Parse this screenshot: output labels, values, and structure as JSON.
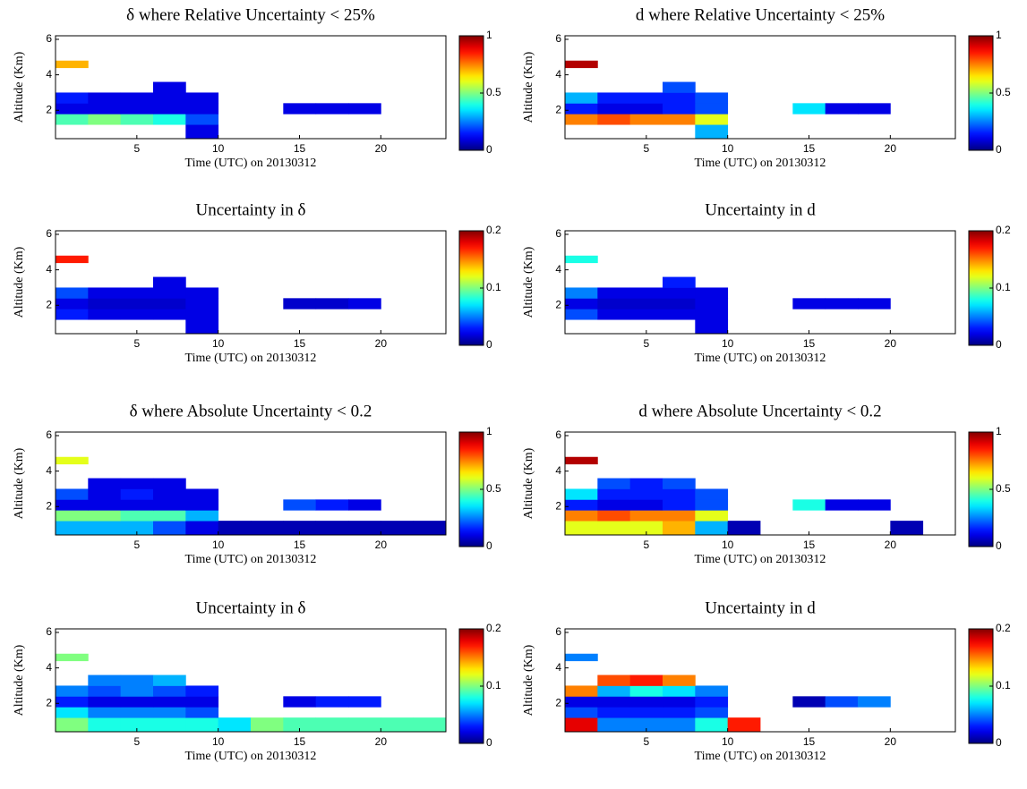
{
  "chart_data": [
    {
      "type": "heatmap",
      "title": "δ where Relative Uncertainty < 25%",
      "xlabel": "Time (UTC) on 20130312",
      "ylabel": "Altitude (Km)",
      "colormap": "jet",
      "xlim": [
        0,
        24
      ],
      "ylim": [
        0.4,
        6.2
      ],
      "xticks": [
        5,
        10,
        15,
        20
      ],
      "yticks": [
        2,
        4,
        6
      ],
      "clim": [
        0,
        1
      ],
      "cticks": [
        0,
        0.5,
        1
      ],
      "xbins": [
        0,
        2,
        4,
        6,
        8,
        10,
        12,
        14,
        16,
        18,
        20,
        22,
        24
      ],
      "ybins": [
        0.4,
        1.2,
        1.8,
        2.4,
        3.0,
        3.6,
        4.4,
        4.8
      ],
      "z": [
        [
          null,
          null,
          null,
          null,
          0.1,
          null,
          null,
          null,
          null,
          null,
          null,
          null
        ],
        [
          0.45,
          0.5,
          0.45,
          0.4,
          0.2,
          null,
          null,
          null,
          null,
          null,
          null,
          null
        ],
        [
          0.1,
          0.1,
          0.1,
          0.1,
          0.1,
          null,
          null,
          0.1,
          0.1,
          0.1,
          null,
          null
        ],
        [
          0.15,
          0.1,
          0.1,
          0.1,
          0.1,
          null,
          null,
          null,
          null,
          null,
          null,
          null
        ],
        [
          null,
          null,
          null,
          0.1,
          null,
          null,
          null,
          null,
          null,
          null,
          null,
          null
        ],
        [
          null,
          null,
          null,
          null,
          null,
          null,
          null,
          null,
          null,
          null,
          null,
          null
        ],
        [
          0.7,
          null,
          null,
          null,
          null,
          null,
          null,
          null,
          null,
          null,
          null,
          null
        ]
      ]
    },
    {
      "type": "heatmap",
      "title": "d where Relative Uncertainty < 25%",
      "xlabel": "Time (UTC) on 20130312",
      "ylabel": "Altitude (Km)",
      "colormap": "jet",
      "xlim": [
        0,
        24
      ],
      "ylim": [
        0.4,
        6.2
      ],
      "xticks": [
        5,
        10,
        15,
        20
      ],
      "yticks": [
        2,
        4,
        6
      ],
      "clim": [
        0,
        1
      ],
      "cticks": [
        0,
        0.5,
        1
      ],
      "xbins": [
        0,
        2,
        4,
        6,
        8,
        10,
        12,
        14,
        16,
        18,
        20,
        22,
        24
      ],
      "ybins": [
        0.4,
        1.2,
        1.8,
        2.4,
        3.0,
        3.6,
        4.4,
        4.8
      ],
      "z": [
        [
          null,
          null,
          null,
          null,
          0.3,
          null,
          null,
          null,
          null,
          null,
          null,
          null
        ],
        [
          0.75,
          0.8,
          0.75,
          0.75,
          0.6,
          null,
          null,
          null,
          null,
          null,
          null,
          null
        ],
        [
          0.15,
          0.1,
          0.1,
          0.15,
          0.2,
          null,
          null,
          0.35,
          0.1,
          0.1,
          null,
          null
        ],
        [
          0.3,
          0.15,
          0.15,
          0.15,
          0.2,
          null,
          null,
          null,
          null,
          null,
          null,
          null
        ],
        [
          null,
          null,
          null,
          0.2,
          null,
          null,
          null,
          null,
          null,
          null,
          null,
          null
        ],
        [
          null,
          null,
          null,
          null,
          null,
          null,
          null,
          null,
          null,
          null,
          null,
          null
        ],
        [
          0.95,
          null,
          null,
          null,
          null,
          null,
          null,
          null,
          null,
          null,
          null,
          null
        ]
      ]
    },
    {
      "type": "heatmap",
      "title": "Uncertainty in δ",
      "xlabel": "Time (UTC) on 20130312",
      "ylabel": "Altitude (Km)",
      "colormap": "jet",
      "xlim": [
        0,
        24
      ],
      "ylim": [
        0.4,
        6.2
      ],
      "xticks": [
        5,
        10,
        15,
        20
      ],
      "yticks": [
        2,
        4,
        6
      ],
      "clim": [
        0,
        0.2
      ],
      "cticks": [
        0,
        0.1,
        0.2
      ],
      "xbins": [
        0,
        2,
        4,
        6,
        8,
        10,
        12,
        14,
        16,
        18,
        20,
        22,
        24
      ],
      "ybins": [
        0.4,
        1.2,
        1.8,
        2.4,
        3.0,
        3.6,
        4.4,
        4.8
      ],
      "z": [
        [
          null,
          null,
          null,
          null,
          0.02,
          null,
          null,
          null,
          null,
          null,
          null,
          null
        ],
        [
          0.03,
          0.02,
          0.02,
          0.02,
          0.02,
          null,
          null,
          null,
          null,
          null,
          null,
          null
        ],
        [
          0.02,
          0.015,
          0.015,
          0.015,
          0.02,
          null,
          null,
          0.015,
          0.015,
          0.02,
          null,
          null
        ],
        [
          0.04,
          0.02,
          0.02,
          0.02,
          0.02,
          null,
          null,
          null,
          null,
          null,
          null,
          null
        ],
        [
          null,
          null,
          null,
          0.02,
          null,
          null,
          null,
          null,
          null,
          null,
          null,
          null
        ],
        [
          null,
          null,
          null,
          null,
          null,
          null,
          null,
          null,
          null,
          null,
          null,
          null
        ],
        [
          0.17,
          null,
          null,
          null,
          null,
          null,
          null,
          null,
          null,
          null,
          null,
          null
        ]
      ]
    },
    {
      "type": "heatmap",
      "title": "Uncertainty in d",
      "xlabel": "Time (UTC) on 20130312",
      "ylabel": "Altitude (Km)",
      "colormap": "jet",
      "xlim": [
        0,
        24
      ],
      "ylim": [
        0.4,
        6.2
      ],
      "xticks": [
        5,
        10,
        15,
        20
      ],
      "yticks": [
        2,
        4,
        6
      ],
      "clim": [
        0,
        0.2
      ],
      "cticks": [
        0,
        0.1,
        0.2
      ],
      "xbins": [
        0,
        2,
        4,
        6,
        8,
        10,
        12,
        14,
        16,
        18,
        20,
        22,
        24
      ],
      "ybins": [
        0.4,
        1.2,
        1.8,
        2.4,
        3.0,
        3.6,
        4.4,
        4.8
      ],
      "z": [
        [
          null,
          null,
          null,
          null,
          0.02,
          null,
          null,
          null,
          null,
          null,
          null,
          null
        ],
        [
          0.04,
          0.02,
          0.02,
          0.02,
          0.02,
          null,
          null,
          null,
          null,
          null,
          null,
          null
        ],
        [
          0.02,
          0.015,
          0.015,
          0.015,
          0.02,
          null,
          null,
          0.02,
          0.02,
          0.02,
          null,
          null
        ],
        [
          0.05,
          0.02,
          0.02,
          0.02,
          0.02,
          null,
          null,
          null,
          null,
          null,
          null,
          null
        ],
        [
          null,
          null,
          null,
          0.03,
          null,
          null,
          null,
          null,
          null,
          null,
          null,
          null
        ],
        [
          null,
          null,
          null,
          null,
          null,
          null,
          null,
          null,
          null,
          null,
          null,
          null
        ],
        [
          0.08,
          null,
          null,
          null,
          null,
          null,
          null,
          null,
          null,
          null,
          null,
          null
        ]
      ]
    },
    {
      "type": "heatmap",
      "title": "δ where Absolute Uncertainty < 0.2",
      "xlabel": "Time (UTC) on 20130312",
      "ylabel": "Altitude (Km)",
      "colormap": "jet",
      "xlim": [
        0,
        24
      ],
      "ylim": [
        0.4,
        6.2
      ],
      "xticks": [
        5,
        10,
        15,
        20
      ],
      "yticks": [
        2,
        4,
        6
      ],
      "clim": [
        0,
        1
      ],
      "cticks": [
        0,
        0.5,
        1
      ],
      "xbins": [
        0,
        2,
        4,
        6,
        8,
        10,
        12,
        14,
        16,
        18,
        20,
        22,
        24
      ],
      "ybins": [
        0.4,
        1.2,
        1.8,
        2.4,
        3.0,
        3.6,
        4.4,
        4.8
      ],
      "z": [
        [
          0.3,
          0.3,
          0.3,
          0.2,
          0.1,
          0.05,
          0.05,
          0.05,
          0.05,
          0.05,
          0.05,
          0.05
        ],
        [
          0.5,
          0.5,
          0.45,
          0.45,
          0.3,
          null,
          null,
          null,
          null,
          null,
          null,
          null
        ],
        [
          0.1,
          0.1,
          0.1,
          0.1,
          0.1,
          null,
          null,
          0.2,
          0.15,
          0.1,
          null,
          null
        ],
        [
          0.2,
          0.1,
          0.15,
          0.1,
          0.1,
          null,
          null,
          null,
          null,
          null,
          null,
          null
        ],
        [
          null,
          0.1,
          0.1,
          0.1,
          null,
          null,
          null,
          null,
          null,
          null,
          null,
          null
        ],
        [
          null,
          null,
          null,
          null,
          null,
          null,
          null,
          null,
          null,
          null,
          null,
          null
        ],
        [
          0.6,
          null,
          null,
          null,
          null,
          null,
          null,
          null,
          null,
          null,
          null,
          null
        ]
      ]
    },
    {
      "type": "heatmap",
      "title": "d where Absolute Uncertainty < 0.2",
      "xlabel": "Time (UTC) on 20130312",
      "ylabel": "Altitude (Km)",
      "colormap": "jet",
      "xlim": [
        0,
        24
      ],
      "ylim": [
        0.4,
        6.2
      ],
      "xticks": [
        5,
        10,
        15,
        20
      ],
      "yticks": [
        2,
        4,
        6
      ],
      "clim": [
        0,
        1
      ],
      "cticks": [
        0,
        0.5,
        1
      ],
      "xbins": [
        0,
        2,
        4,
        6,
        8,
        10,
        12,
        14,
        16,
        18,
        20,
        22,
        24
      ],
      "ybins": [
        0.4,
        1.2,
        1.8,
        2.4,
        3.0,
        3.6,
        4.4,
        4.8
      ],
      "z": [
        [
          0.6,
          0.6,
          0.6,
          0.7,
          0.3,
          0.05,
          null,
          null,
          null,
          null,
          0.05,
          null
        ],
        [
          0.75,
          0.8,
          0.75,
          0.75,
          0.6,
          null,
          null,
          null,
          null,
          null,
          null,
          null
        ],
        [
          0.15,
          0.1,
          0.1,
          0.15,
          0.2,
          null,
          null,
          0.4,
          0.1,
          0.1,
          null,
          null
        ],
        [
          0.35,
          0.15,
          0.15,
          0.15,
          0.2,
          null,
          null,
          null,
          null,
          null,
          null,
          null
        ],
        [
          null,
          0.2,
          0.15,
          0.2,
          null,
          null,
          null,
          null,
          null,
          null,
          null,
          null
        ],
        [
          null,
          null,
          null,
          null,
          null,
          null,
          null,
          null,
          null,
          null,
          null,
          null
        ],
        [
          0.95,
          null,
          null,
          null,
          null,
          null,
          null,
          null,
          null,
          null,
          null,
          null
        ]
      ]
    },
    {
      "type": "heatmap",
      "title": "Uncertainty in δ",
      "xlabel": "Time (UTC) on 20130312",
      "ylabel": "Altitude (Km)",
      "colormap": "jet",
      "xlim": [
        0,
        24
      ],
      "ylim": [
        0.4,
        6.2
      ],
      "xticks": [
        5,
        10,
        15,
        20
      ],
      "yticks": [
        2,
        4,
        6
      ],
      "clim": [
        0,
        0.2
      ],
      "cticks": [
        0,
        0.1,
        0.2
      ],
      "xbins": [
        0,
        2,
        4,
        6,
        8,
        10,
        12,
        14,
        16,
        18,
        20,
        22,
        24
      ],
      "ybins": [
        0.4,
        1.2,
        1.8,
        2.4,
        3.0,
        3.6,
        4.4,
        4.8
      ],
      "z": [
        [
          0.1,
          0.08,
          0.08,
          0.08,
          0.08,
          0.07,
          0.1,
          0.09,
          0.09,
          0.09,
          0.09,
          0.09
        ],
        [
          0.07,
          0.05,
          0.05,
          0.05,
          0.04,
          null,
          null,
          null,
          null,
          null,
          null,
          null
        ],
        [
          0.03,
          0.02,
          0.02,
          0.02,
          0.02,
          null,
          null,
          0.02,
          0.03,
          0.03,
          null,
          null
        ],
        [
          0.05,
          0.04,
          0.05,
          0.04,
          0.03,
          null,
          null,
          null,
          null,
          null,
          null,
          null
        ],
        [
          null,
          0.05,
          0.05,
          0.06,
          null,
          null,
          null,
          null,
          null,
          null,
          null,
          null
        ],
        [
          null,
          null,
          null,
          null,
          null,
          null,
          null,
          null,
          null,
          null,
          null,
          null
        ],
        [
          0.1,
          null,
          null,
          null,
          null,
          null,
          null,
          null,
          null,
          null,
          null,
          null
        ]
      ]
    },
    {
      "type": "heatmap",
      "title": "Uncertainty in d",
      "xlabel": "Time (UTC) on 20130312",
      "ylabel": "Altitude (Km)",
      "colormap": "jet",
      "xlim": [
        0,
        24
      ],
      "ylim": [
        0.4,
        6.2
      ],
      "xticks": [
        5,
        10,
        15,
        20
      ],
      "yticks": [
        2,
        4,
        6
      ],
      "clim": [
        0,
        0.2
      ],
      "cticks": [
        0,
        0.1,
        0.2
      ],
      "xbins": [
        0,
        2,
        4,
        6,
        8,
        10,
        12,
        14,
        16,
        18,
        20,
        22,
        24
      ],
      "ybins": [
        0.4,
        1.2,
        1.8,
        2.4,
        3.0,
        3.6,
        4.4,
        4.8
      ],
      "z": [
        [
          0.18,
          0.05,
          0.05,
          0.05,
          0.08,
          0.17,
          null,
          null,
          null,
          null,
          null,
          null
        ],
        [
          0.04,
          0.03,
          0.03,
          0.03,
          0.04,
          null,
          null,
          null,
          null,
          null,
          null,
          null
        ],
        [
          0.02,
          0.02,
          0.02,
          0.02,
          0.03,
          null,
          null,
          0.01,
          0.04,
          0.05,
          null,
          null
        ],
        [
          0.15,
          0.06,
          0.08,
          0.07,
          0.05,
          null,
          null,
          null,
          null,
          null,
          null,
          null
        ],
        [
          null,
          0.16,
          0.17,
          0.15,
          null,
          null,
          null,
          null,
          null,
          null,
          null,
          null
        ],
        [
          null,
          null,
          null,
          null,
          null,
          null,
          null,
          null,
          null,
          null,
          null,
          null
        ],
        [
          0.05,
          null,
          null,
          null,
          null,
          null,
          null,
          null,
          null,
          null,
          null,
          null
        ]
      ]
    }
  ]
}
